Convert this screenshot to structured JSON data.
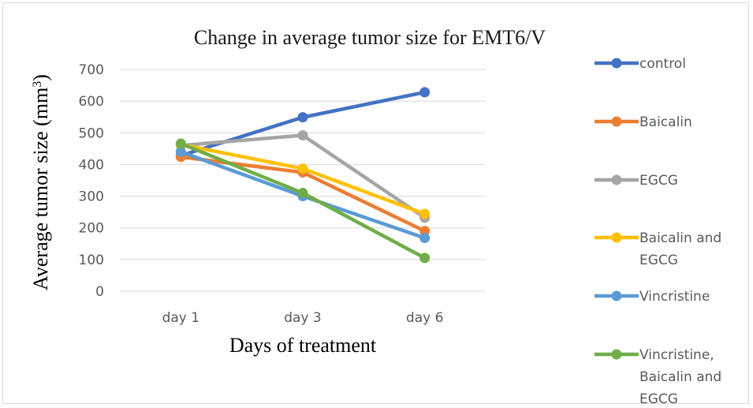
{
  "chart_data": {
    "type": "line",
    "title": "Change in average tumor size for EMT6/V",
    "xlabel": "Days of treatment",
    "ylabel": "Average tumor size (mm³)",
    "ylim": [
      0,
      700
    ],
    "yticks": [
      0,
      100,
      200,
      300,
      400,
      500,
      600,
      700
    ],
    "grid": true,
    "legend_position": "right",
    "categories": [
      "day 1",
      "day 3",
      "day 6"
    ],
    "series": [
      {
        "name": "control",
        "legend_lines": [
          "control"
        ],
        "color": "#4472c4",
        "values": [
          428,
          549,
          628
        ]
      },
      {
        "name": "Baicalin",
        "legend_lines": [
          "Baicalin"
        ],
        "color": "#ed7d31",
        "values": [
          424,
          375,
          190
        ]
      },
      {
        "name": "EGCG",
        "legend_lines": [
          "EGCG"
        ],
        "color": "#a5a5a5",
        "values": [
          460,
          492,
          232
        ]
      },
      {
        "name": "Baicalin and EGCG",
        "legend_lines": [
          "Baicalin and",
          "EGCG"
        ],
        "color": "#ffc000",
        "values": [
          463,
          387,
          244
        ]
      },
      {
        "name": "Vincristine",
        "legend_lines": [
          "Vincristine"
        ],
        "color": "#5b9bd5",
        "values": [
          440,
          300,
          168
        ]
      },
      {
        "name": "Vincristine, Baicalin and EGCG",
        "legend_lines": [
          "Vincristine,",
          "Baicalin and",
          "EGCG"
        ],
        "color": "#70ad47",
        "values": [
          466,
          310,
          105
        ]
      }
    ]
  }
}
